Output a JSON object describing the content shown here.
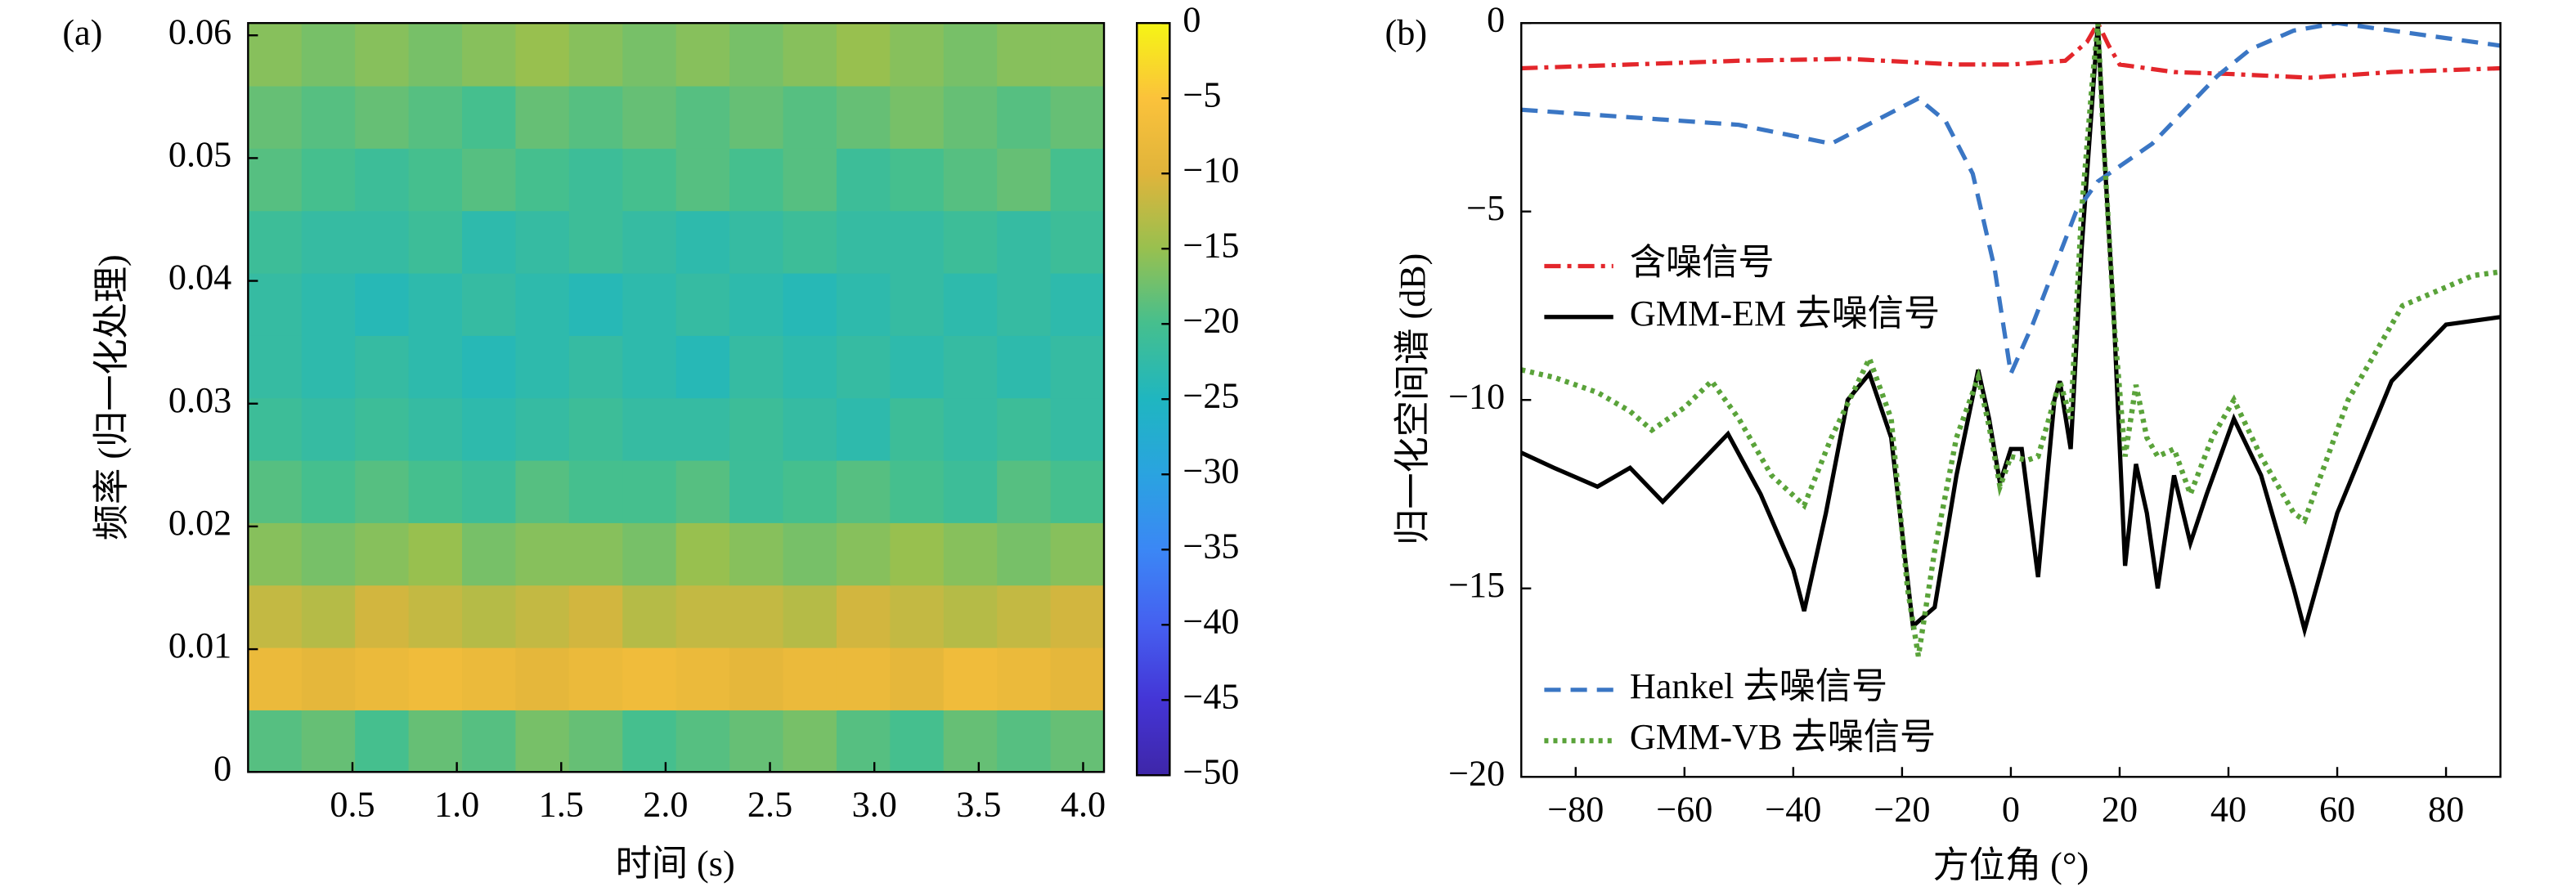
{
  "chart_data": [
    {
      "type": "heatmap",
      "panel": "(a)",
      "xlabel": "时间 (s)",
      "ylabel": "频率 (归一化处理)",
      "xlim": [
        0,
        4.1
      ],
      "ylim": [
        0,
        0.061
      ],
      "xticks": [
        0.5,
        {
          "value": 1,
          "label": "1.0"
        },
        1.5,
        {
          "value": 2,
          "label": "2.0"
        },
        2.5,
        {
          "value": 3,
          "label": "3.0"
        },
        3.5,
        {
          "value": 4,
          "label": "4.0"
        }
      ],
      "yticks": [
        0,
        0.01,
        0.02,
        0.03,
        0.04,
        0.05,
        0.06
      ],
      "clim": [
        -50,
        0
      ],
      "cticks": [
        0,
        {
          "value": -5,
          "label": "−5"
        },
        {
          "value": -10,
          "label": "−10"
        },
        {
          "value": -15,
          "label": "−15"
        },
        {
          "value": -20,
          "label": "−20"
        },
        {
          "value": -25,
          "label": "−25"
        },
        {
          "value": -30,
          "label": "−30"
        },
        {
          "value": -35,
          "label": "−35"
        },
        {
          "value": -40,
          "label": "−40"
        },
        {
          "value": -45,
          "label": "−45"
        },
        {
          "value": -50,
          "label": "−50"
        }
      ],
      "colormap": [
        "#3e26a8",
        "#4435d6",
        "#4560f0",
        "#3b87f5",
        "#2aa3e0",
        "#1fb6c0",
        "#45bf8e",
        "#98c04f",
        "#e0b43b",
        "#fbc23b",
        "#f5f515"
      ],
      "values": [
        [
          -19,
          -18,
          -20,
          -18,
          -19,
          -17,
          -18,
          -20,
          -19,
          -18,
          -17,
          -19,
          -20,
          -18,
          -19,
          -18
        ],
        [
          -8,
          -9,
          -8,
          -7,
          -8,
          -9,
          -8,
          -7,
          -8,
          -9,
          -8,
          -8,
          -9,
          -7,
          -8,
          -9
        ],
        [
          -12,
          -13,
          -11,
          -12,
          -13,
          -12,
          -11,
          -13,
          -12,
          -12,
          -13,
          -11,
          -12,
          -13,
          -12,
          -11
        ],
        [
          -16,
          -17,
          -16,
          -15,
          -17,
          -16,
          -16,
          -17,
          -15,
          -16,
          -17,
          -16,
          -15,
          -16,
          -17,
          -16
        ],
        [
          -19,
          -20,
          -19,
          -20,
          -21,
          -19,
          -20,
          -20,
          -19,
          -21,
          -20,
          -19,
          -20,
          -21,
          -19,
          -20
        ],
        [
          -21,
          -22,
          -21,
          -22,
          -23,
          -22,
          -21,
          -22,
          -22,
          -21,
          -22,
          -23,
          -21,
          -22,
          -21,
          -22
        ],
        [
          -22,
          -23,
          -22,
          -23,
          -24,
          -23,
          -22,
          -23,
          -24,
          -22,
          -23,
          -22,
          -23,
          -22,
          -23,
          -22
        ],
        [
          -22,
          -23,
          -24,
          -23,
          -22,
          -23,
          -24,
          -23,
          -22,
          -23,
          -24,
          -23,
          -22,
          -23,
          -22,
          -23
        ],
        [
          -21,
          -22,
          -22,
          -21,
          -23,
          -22,
          -21,
          -22,
          -23,
          -22,
          -21,
          -22,
          -22,
          -21,
          -22,
          -21
        ],
        [
          -19,
          -20,
          -21,
          -20,
          -19,
          -20,
          -21,
          -20,
          -19,
          -20,
          -19,
          -21,
          -20,
          -19,
          -18,
          -20
        ],
        [
          -18,
          -19,
          -18,
          -19,
          -20,
          -18,
          -19,
          -18,
          -19,
          -18,
          -19,
          -18,
          -17,
          -18,
          -19,
          -18
        ],
        [
          -16,
          -17,
          -16,
          -17,
          -16,
          -15,
          -16,
          -17,
          -16,
          -17,
          -16,
          -15,
          -16,
          -17,
          -16,
          -16
        ]
      ]
    },
    {
      "type": "line",
      "panel": "(b)",
      "xlabel": "方位角 (°)",
      "ylabel": "归一化空间谱 (dB)",
      "xlim": [
        -90,
        90
      ],
      "ylim": [
        -20,
        0
      ],
      "xticks": [
        {
          "value": -80,
          "label": "−80"
        },
        {
          "value": -60,
          "label": "−60"
        },
        {
          "value": -40,
          "label": "−40"
        },
        {
          "value": -20,
          "label": "−20"
        },
        0,
        20,
        40,
        60,
        80
      ],
      "yticks": [
        0,
        {
          "value": -5,
          "label": "−5"
        },
        {
          "value": -10,
          "label": "−10"
        },
        {
          "value": -15,
          "label": "−15"
        },
        {
          "value": -20,
          "label": "−20"
        }
      ],
      "series": [
        {
          "name": "含噪信号",
          "color": "#e3262b",
          "style": "dashdot",
          "legend": "upper left",
          "x": [
            -90,
            -70,
            -50,
            -30,
            -10,
            0,
            10,
            14,
            16,
            18,
            20,
            30,
            40,
            55,
            70,
            90
          ],
          "values": [
            -1.2,
            -1.1,
            -1.0,
            -0.95,
            -1.1,
            -1.1,
            -1.0,
            -0.5,
            0,
            -0.6,
            -1.1,
            -1.3,
            -1.35,
            -1.45,
            -1.3,
            -1.2
          ]
        },
        {
          "name": "GMM-EM 去噪信号",
          "color": "#000000",
          "style": "solid",
          "legend": "upper left",
          "x": [
            -90,
            -84,
            -76,
            -70,
            -64,
            -56,
            -52,
            -46,
            -40,
            -38,
            -34,
            -30,
            -26,
            -22,
            -18,
            -14,
            -10,
            -6,
            -4,
            -2,
            0,
            2,
            5,
            8,
            9,
            11,
            13,
            15,
            16,
            17,
            19,
            21,
            23,
            25,
            27,
            30,
            33,
            36,
            41,
            46,
            52,
            54,
            60,
            70,
            80,
            90
          ],
          "values": [
            -11.4,
            -11.8,
            -12.3,
            -11.8,
            -12.7,
            -11.5,
            -10.9,
            -12.5,
            -14.5,
            -15.6,
            -13,
            -10,
            -9.3,
            -11,
            -16,
            -15.5,
            -12,
            -9.2,
            -10.5,
            -12.2,
            -11.3,
            -11.3,
            -14.7,
            -10,
            -9.5,
            -11.3,
            -6,
            -2,
            0,
            -3,
            -8,
            -14.4,
            -11.7,
            -13,
            -15,
            -12,
            -13.8,
            -12.5,
            -10.5,
            -12,
            -15,
            -16.1,
            -13,
            -9.5,
            -8,
            -7.8
          ]
        },
        {
          "name": "Hankel 去噪信号",
          "color": "#3a76c4",
          "style": "dashed",
          "legend": "lower left",
          "x": [
            -90,
            -70,
            -50,
            -33,
            -25,
            -17,
            -12,
            -7,
            -3,
            0,
            4,
            8,
            12,
            16,
            20,
            26,
            32,
            38,
            44,
            52,
            60,
            70,
            80,
            90
          ],
          "values": [
            -2.3,
            -2.5,
            -2.7,
            -3.2,
            -2.6,
            -2.0,
            -2.6,
            -4,
            -6.5,
            -9.3,
            -8,
            -6.5,
            -5,
            -4.2,
            -3.8,
            -3.2,
            -2.3,
            -1.4,
            -0.7,
            -0.2,
            0,
            -0.2,
            -0.4,
            -0.6
          ]
        },
        {
          "name": "GMM-VB 去噪信号",
          "color": "#5aa33a",
          "style": "dotted",
          "legend": "lower left",
          "x": [
            -90,
            -84,
            -76,
            -70,
            -66,
            -60,
            -55,
            -50,
            -44,
            -38,
            -33,
            -28,
            -26,
            -22,
            -19,
            -17,
            -14,
            -10,
            -6,
            -4,
            -2,
            0,
            3,
            5,
            8,
            9,
            11,
            13,
            15,
            16,
            17,
            19,
            21,
            23,
            25,
            27,
            30,
            33,
            37,
            41,
            46,
            52,
            54,
            62,
            72,
            85,
            90
          ],
          "values": [
            -9.2,
            -9.4,
            -9.8,
            -10.3,
            -10.8,
            -10.2,
            -9.5,
            -10.5,
            -12,
            -12.8,
            -11,
            -9.5,
            -8.9,
            -10.5,
            -15,
            -16.8,
            -14,
            -11,
            -9.4,
            -10.7,
            -12.3,
            -11.5,
            -11.6,
            -11.5,
            -10,
            -9.5,
            -10.5,
            -5,
            -1.5,
            0,
            -3,
            -8,
            -11.5,
            -9.6,
            -11,
            -11.5,
            -11.3,
            -12.5,
            -11,
            -10,
            -11.5,
            -13,
            -13.2,
            -10,
            -7.5,
            -6.7,
            -6.6
          ]
        }
      ]
    }
  ]
}
